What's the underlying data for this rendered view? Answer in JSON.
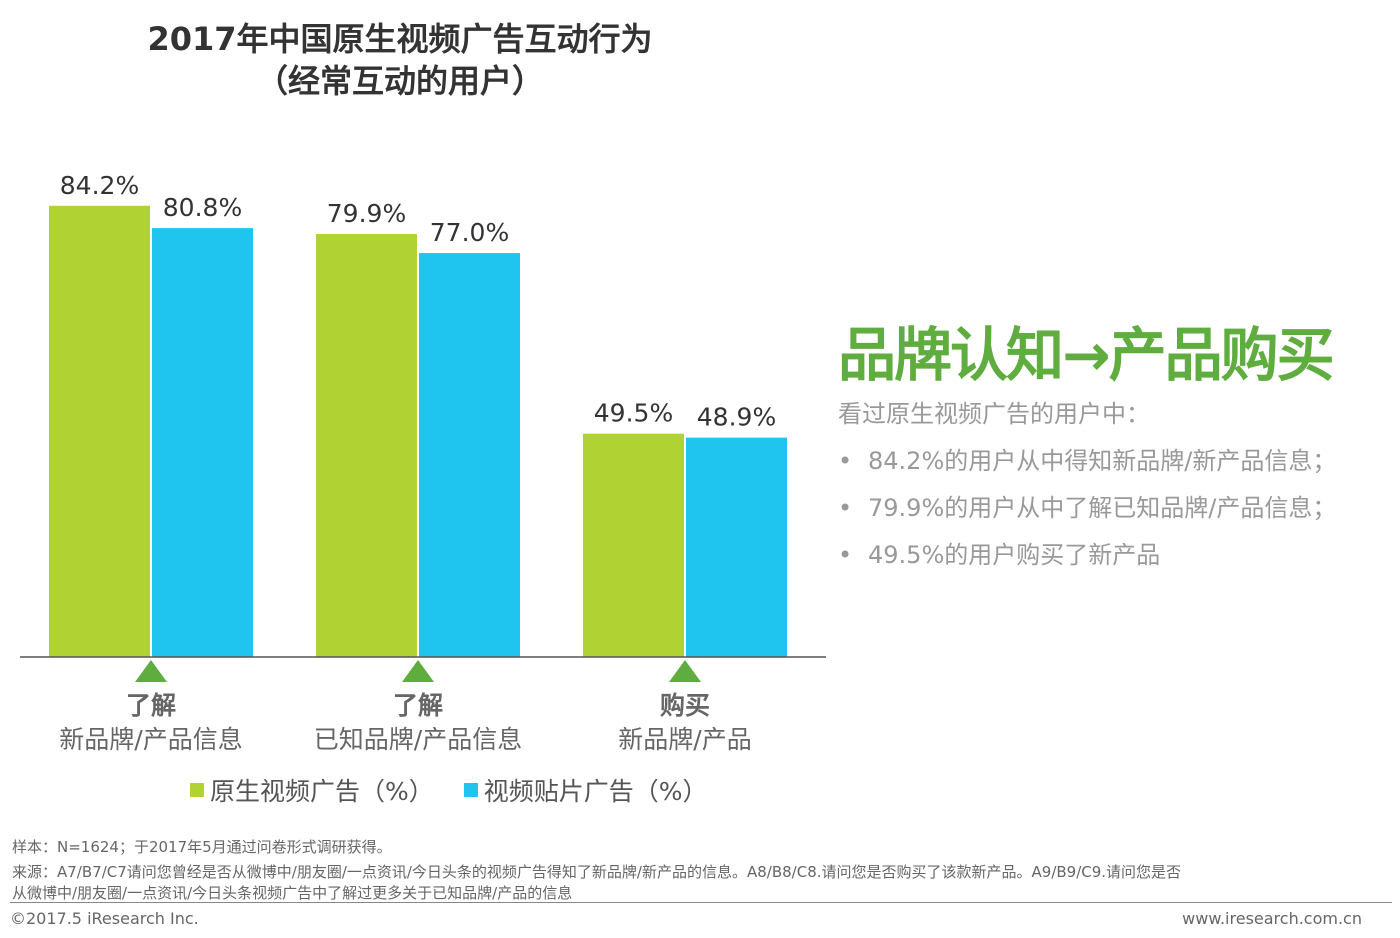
{
  "chart_data": {
    "type": "bar",
    "title": "2017年中国原生视频广告互动行为",
    "subtitle": "（经常互动的用户）",
    "categories": [
      {
        "bold": "了解",
        "sub": "新品牌/产品信息"
      },
      {
        "bold": "了解",
        "sub": "已知品牌/产品信息"
      },
      {
        "bold": "购买",
        "sub": "新品牌/产品"
      }
    ],
    "series": [
      {
        "name": "原生视频广告（%）",
        "color": "#b0d232",
        "values": [
          84.2,
          79.9,
          49.5
        ],
        "labels": [
          "84.2%",
          "79.9%",
          "49.5%"
        ]
      },
      {
        "name": "视频贴片广告（%）",
        "color": "#1fc5ef",
        "values": [
          80.8,
          77.0,
          48.9
        ],
        "labels": [
          "80.8%",
          "77.0%",
          "48.9%"
        ]
      }
    ],
    "ylim": [
      15.5,
      100
    ],
    "grid": false,
    "legend": "bottom",
    "marker_color": "#5fad3f"
  },
  "side": {
    "headline": "品牌认知→产品购买",
    "intro": "看过原生视频广告的用户中：",
    "bullets": [
      "84.2%的用户从中得知新品牌/新产品信息；",
      "79.9%的用户从中了解已知品牌/产品信息；",
      "49.5%的用户购买了新产品"
    ],
    "bullet_char": "•"
  },
  "footer": {
    "sample": "样本：N=1624；于2017年5月通过问卷形式调研获得。",
    "source1": "来源：A7/B7/C7请问您曾经是否从微博中/朋友圈/一点资讯/今日头条的视频广告得知了新品牌/新产品的信息。A8/B8/C8.请问您是否购买了该款新产品。A9/B9/C9.请问您是否",
    "source2": "从微博中/朋友圈/一点资讯/今日头条视频广告中了解过更多关于已知品牌/产品的信息",
    "copyright": "©2017.5 iResearch Inc.",
    "site": "www.iresearch.com.cn"
  }
}
